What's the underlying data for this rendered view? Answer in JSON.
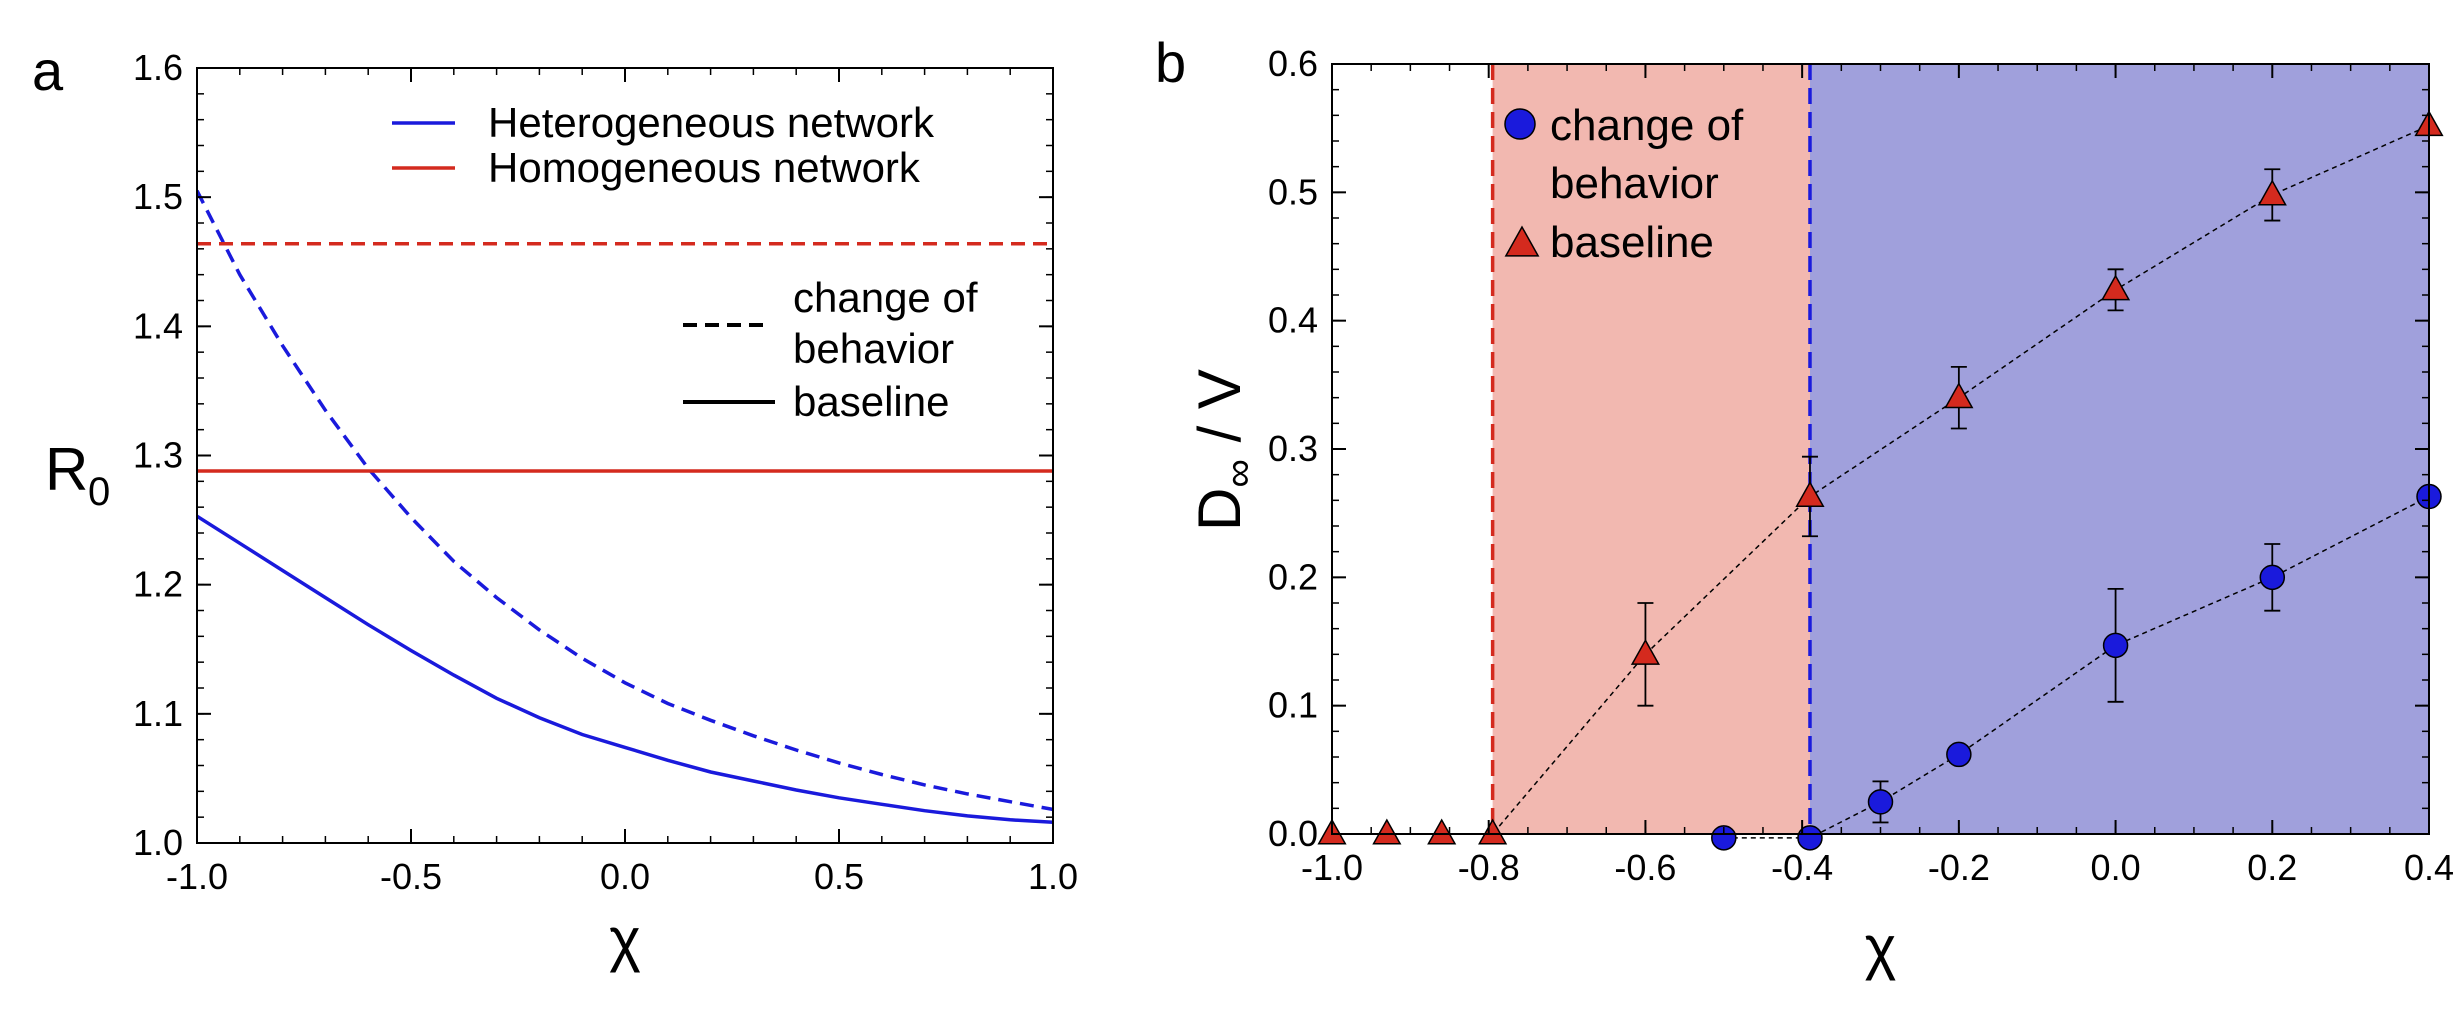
{
  "chart_data": [
    {
      "panel": "a",
      "type": "line",
      "xlabel": "χ",
      "ylabel_main": "R",
      "ylabel_sub": "0",
      "xlim": [
        -1.0,
        1.0
      ],
      "ylim": [
        1.0,
        1.6
      ],
      "x_ticks": [
        -1.0,
        -0.5,
        0.0,
        0.5,
        1.0
      ],
      "x_tick_labels": [
        "-1.0",
        "-0.5",
        "0.0",
        "0.5",
        "1.0"
      ],
      "y_ticks": [
        1.0,
        1.1,
        1.2,
        1.3,
        1.4,
        1.5,
        1.6
      ],
      "y_tick_labels": [
        "1.0",
        "1.1",
        "1.2",
        "1.3",
        "1.4",
        "1.5",
        "1.6"
      ],
      "legend": {
        "networks": [
          {
            "label": "Heterogeneous network",
            "color": "#1a1adc"
          },
          {
            "label": "Homogeneous network",
            "color": "#d42a1e"
          }
        ],
        "styles": [
          {
            "label_line1": "change  of",
            "label_line2": "behavior",
            "dash": "dashed"
          },
          {
            "label_line1": "baseline",
            "dash": "solid"
          }
        ]
      },
      "series": [
        {
          "name": "Heterogeneous network - change of behavior",
          "color": "#1a1adc",
          "dash": "dashed",
          "x": [
            -1.0,
            -0.9,
            -0.8,
            -0.7,
            -0.6,
            -0.5,
            -0.4,
            -0.3,
            -0.2,
            -0.1,
            0.0,
            0.1,
            0.2,
            0.3,
            0.4,
            0.5,
            0.6,
            0.7,
            0.8,
            0.9,
            1.0
          ],
          "y": [
            1.505,
            1.44,
            1.385,
            1.335,
            1.29,
            1.252,
            1.218,
            1.19,
            1.165,
            1.143,
            1.124,
            1.108,
            1.095,
            1.083,
            1.072,
            1.062,
            1.053,
            1.045,
            1.038,
            1.032,
            1.026
          ]
        },
        {
          "name": "Heterogeneous network - baseline",
          "color": "#1a1adc",
          "dash": "solid",
          "x": [
            -1.0,
            -0.9,
            -0.8,
            -0.7,
            -0.6,
            -0.5,
            -0.4,
            -0.3,
            -0.2,
            -0.1,
            0.0,
            0.1,
            0.2,
            0.3,
            0.4,
            0.5,
            0.6,
            0.7,
            0.8,
            0.9,
            1.0
          ],
          "y": [
            1.253,
            1.232,
            1.211,
            1.19,
            1.169,
            1.149,
            1.13,
            1.112,
            1.097,
            1.084,
            1.074,
            1.064,
            1.055,
            1.048,
            1.041,
            1.035,
            1.03,
            1.025,
            1.021,
            1.018,
            1.016
          ]
        },
        {
          "name": "Homogeneous network - change of behavior",
          "color": "#d42a1e",
          "dash": "dashed",
          "x": [
            -1.0,
            1.0
          ],
          "y": [
            1.464,
            1.464
          ]
        },
        {
          "name": "Homogeneous network - baseline",
          "color": "#d42a1e",
          "dash": "solid",
          "x": [
            -1.0,
            1.0
          ],
          "y": [
            1.288,
            1.288
          ]
        }
      ]
    },
    {
      "panel": "b",
      "type": "scatter",
      "xlabel": "χ",
      "ylabel_main": "D",
      "ylabel_sub": "∞",
      "ylabel_rest": " / V",
      "xlim": [
        -1.0,
        0.4
      ],
      "ylim": [
        0.0,
        0.6
      ],
      "x_ticks": [
        -1.0,
        -0.8,
        -0.6,
        -0.4,
        -0.2,
        0.0,
        0.2,
        0.4
      ],
      "x_tick_labels": [
        "-1.0",
        "-0.8",
        "-0.6",
        "-0.4",
        "-0.2",
        "0.0",
        "0.2",
        "0.4"
      ],
      "y_ticks": [
        0.0,
        0.1,
        0.2,
        0.3,
        0.4,
        0.5,
        0.6
      ],
      "y_tick_labels": [
        "0.0",
        "0.1",
        "0.2",
        "0.3",
        "0.4",
        "0.5",
        "0.6"
      ],
      "shaded_regions": [
        {
          "x0": -0.795,
          "x1": -0.39,
          "color": "#f2b8b0",
          "edge_color": "#d42a1e"
        },
        {
          "x0": -0.39,
          "x1": 0.4,
          "color": "#a0a0dc",
          "edge_color": "#1a1adc"
        }
      ],
      "legend": [
        {
          "label_line1": "change of",
          "label_line2": "behavior",
          "marker": "circle",
          "color": "#1a1adc"
        },
        {
          "label_line1": "baseline",
          "marker": "triangle",
          "color": "#d42a1e"
        }
      ],
      "series": [
        {
          "name": "change of behavior",
          "marker": "circle",
          "color": "#1a1adc",
          "x": [
            -0.5,
            -0.39,
            -0.3,
            -0.2,
            0.0,
            0.2,
            0.4
          ],
          "y": [
            -0.003,
            -0.003,
            0.025,
            0.062,
            0.147,
            0.2,
            0.263
          ],
          "err": [
            0,
            0,
            0.016,
            0,
            0.044,
            0.026,
            0
          ]
        },
        {
          "name": "baseline",
          "marker": "triangle",
          "color": "#d42a1e",
          "x": [
            -1.0,
            -0.93,
            -0.86,
            -0.795,
            -0.6,
            -0.39,
            -0.2,
            0.0,
            0.2,
            0.4
          ],
          "y": [
            0.0,
            0.0,
            0.0,
            0.0,
            0.14,
            0.263,
            0.34,
            0.424,
            0.498,
            0.552
          ],
          "err": [
            0,
            0,
            0,
            0,
            0.04,
            0.031,
            0.024,
            0.016,
            0.02,
            0
          ]
        }
      ]
    }
  ]
}
